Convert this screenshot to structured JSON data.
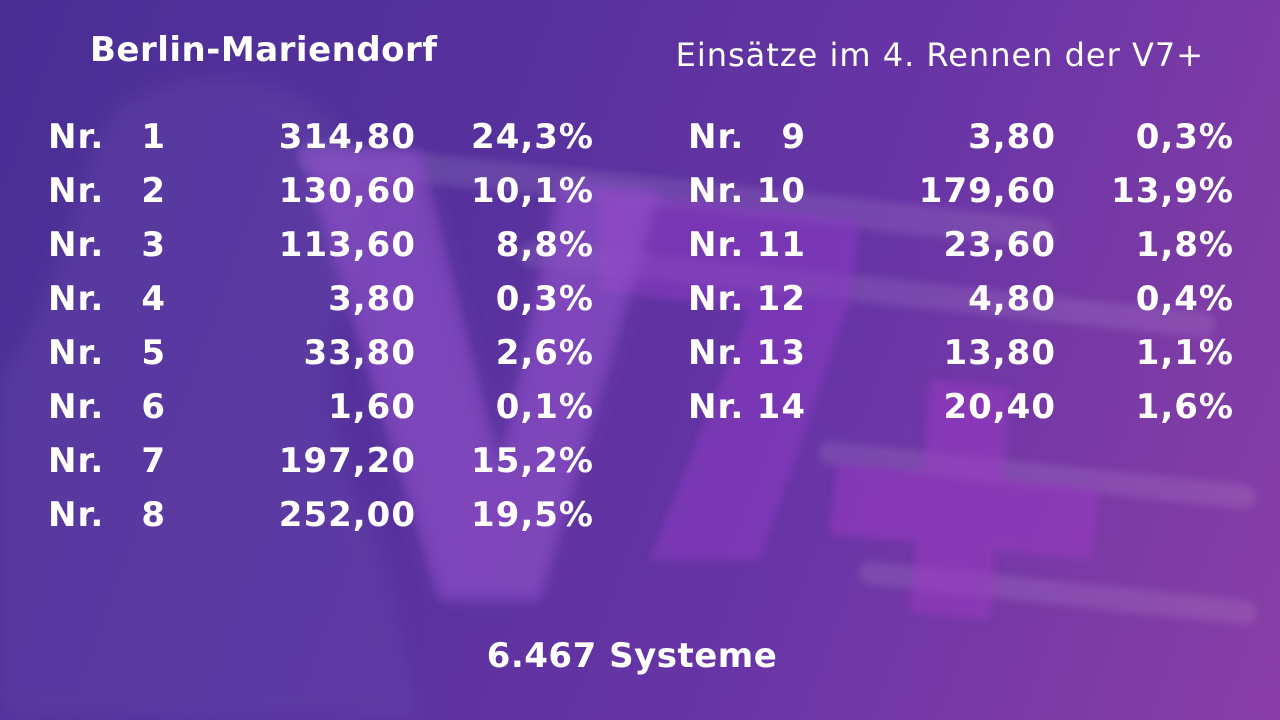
{
  "header": {
    "venue": "Berlin-Mariendorf",
    "subtitle": "Einsätze im 4. Rennen der V7+"
  },
  "logo": {
    "text": "V7+",
    "icon": "v7-plus-logo-watermark"
  },
  "left_rows": [
    {
      "label": "Nr.",
      "num": "1",
      "amount": "314,80",
      "percent": "24,3%"
    },
    {
      "label": "Nr.",
      "num": "2",
      "amount": "130,60",
      "percent": "10,1%"
    },
    {
      "label": "Nr.",
      "num": "3",
      "amount": "113,60",
      "percent": "8,8%"
    },
    {
      "label": "Nr.",
      "num": "4",
      "amount": "3,80",
      "percent": "0,3%"
    },
    {
      "label": "Nr.",
      "num": "5",
      "amount": "33,80",
      "percent": "2,6%"
    },
    {
      "label": "Nr.",
      "num": "6",
      "amount": "1,60",
      "percent": "0,1%"
    },
    {
      "label": "Nr.",
      "num": "7",
      "amount": "197,20",
      "percent": "15,2%"
    },
    {
      "label": "Nr.",
      "num": "8",
      "amount": "252,00",
      "percent": "19,5%"
    }
  ],
  "right_rows": [
    {
      "label": "Nr.",
      "num": "9",
      "amount": "3,80",
      "percent": "0,3%"
    },
    {
      "label": "Nr.",
      "num": "10",
      "amount": "179,60",
      "percent": "13,9%"
    },
    {
      "label": "Nr.",
      "num": "11",
      "amount": "23,60",
      "percent": "1,8%"
    },
    {
      "label": "Nr.",
      "num": "12",
      "amount": "4,80",
      "percent": "0,4%"
    },
    {
      "label": "Nr.",
      "num": "13",
      "amount": "13,80",
      "percent": "1,1%"
    },
    {
      "label": "Nr.",
      "num": "14",
      "amount": "20,40",
      "percent": "1,6%"
    }
  ],
  "footer": {
    "systems": "6.467 Systeme"
  }
}
